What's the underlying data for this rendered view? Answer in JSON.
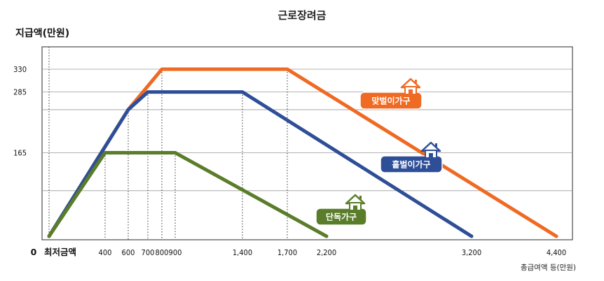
{
  "chart_data": {
    "type": "line",
    "title": "근로장려금",
    "ylabel": "지급액(만원)",
    "xlabel": "총급여액 등(만원)",
    "origin_label": "0",
    "min_label": "최저금액",
    "x_ticks": [
      400,
      600,
      700,
      800,
      900,
      1400,
      1700,
      2200,
      3200,
      4400
    ],
    "x_tick_labels": [
      "400",
      "600",
      "700",
      "800",
      "900",
      "1,400",
      "1,700",
      "2,200",
      "3,200",
      "4,400"
    ],
    "y_ticks": [
      165,
      285,
      330
    ],
    "y_tick_labels": [
      "165",
      "285",
      "330"
    ],
    "xlim": [
      0,
      4400
    ],
    "ylim": [
      0,
      330
    ],
    "grid": "horizontal",
    "series": [
      {
        "name": "맞벌이가구",
        "color": "#ef6a22",
        "x": [
          0,
          600,
          800,
          1700,
          4400
        ],
        "y": [
          0,
          250,
          330,
          330,
          0
        ]
      },
      {
        "name": "홑벌이가구",
        "color": "#2e4f97",
        "x": [
          0,
          600,
          700,
          1400,
          3200
        ],
        "y": [
          0,
          250,
          285,
          285,
          0
        ]
      },
      {
        "name": "단독가구",
        "color": "#5a7d2a",
        "x": [
          0,
          400,
          900,
          2200
        ],
        "y": [
          0,
          165,
          165,
          0
        ]
      }
    ]
  }
}
